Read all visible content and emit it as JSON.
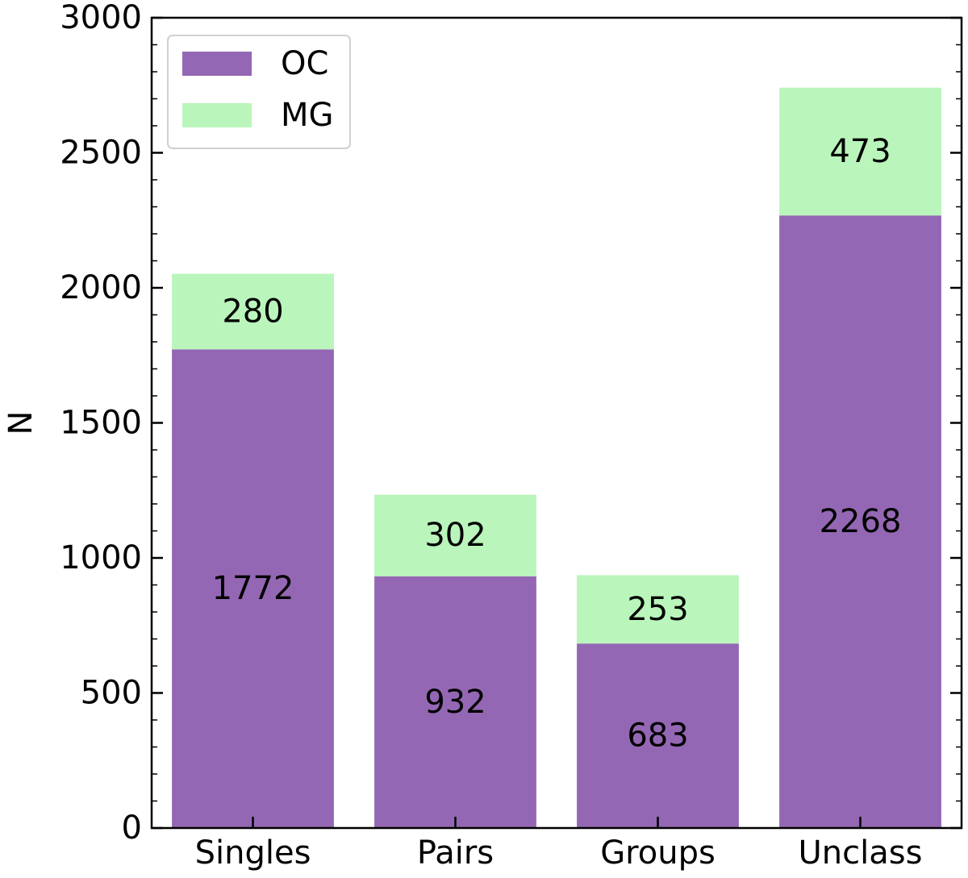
{
  "chart_data": {
    "type": "bar",
    "stacked": true,
    "categories": [
      "Singles",
      "Pairs",
      "Groups",
      "Unclass"
    ],
    "series": [
      {
        "name": "OC",
        "values": [
          1772,
          932,
          683,
          2268
        ],
        "color": "#9467b4"
      },
      {
        "name": "MG",
        "values": [
          280,
          302,
          253,
          473
        ],
        "color": "#baf5bb"
      }
    ],
    "title": "",
    "xlabel": "",
    "ylabel": "N",
    "ylim": [
      0,
      3000
    ],
    "yticks": [
      0,
      500,
      1000,
      1500,
      2000,
      2500,
      3000
    ],
    "minor_ytick_step": 100,
    "grid": false,
    "legend": {
      "placement": "top-left"
    }
  }
}
